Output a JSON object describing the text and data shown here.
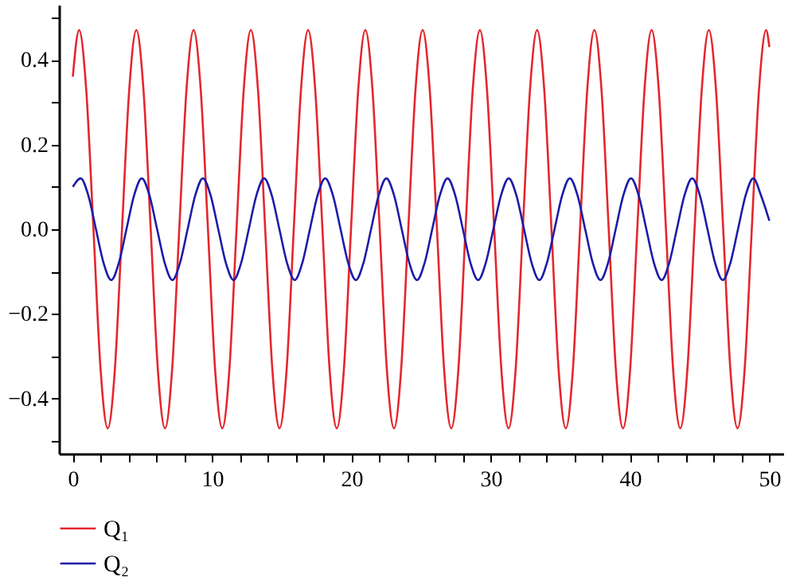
{
  "chart_data": {
    "type": "line",
    "xlim": [
      -1,
      51
    ],
    "ylim": [
      -0.53,
      0.53
    ],
    "xticks": [
      0,
      {
        "value": 2,
        "label": null
      },
      {
        "value": 4,
        "label": null
      },
      {
        "value": 6,
        "label": null
      },
      {
        "value": 8,
        "label": null
      },
      10,
      {
        "value": 12,
        "label": null
      },
      {
        "value": 14,
        "label": null
      },
      {
        "value": 16,
        "label": null
      },
      {
        "value": 18,
        "label": null
      },
      20,
      {
        "value": 22,
        "label": null
      },
      {
        "value": 24,
        "label": null
      },
      {
        "value": 26,
        "label": null
      },
      {
        "value": 28,
        "label": null
      },
      30,
      {
        "value": 32,
        "label": null
      },
      {
        "value": 34,
        "label": null
      },
      {
        "value": 36,
        "label": null
      },
      {
        "value": 38,
        "label": null
      },
      40,
      {
        "value": 42,
        "label": null
      },
      {
        "value": 44,
        "label": null
      },
      {
        "value": 46,
        "label": null
      },
      {
        "value": 48,
        "label": null
      },
      50
    ],
    "yticks": [
      {
        "value": -0.5,
        "label": null
      },
      {
        "value": -0.4,
        "label": "−0.4"
      },
      {
        "value": -0.3,
        "label": null
      },
      {
        "value": -0.2,
        "label": "−0.2"
      },
      {
        "value": -0.1,
        "label": null
      },
      {
        "value": 0,
        "label": "0.0"
      },
      {
        "value": 0.1,
        "label": null
      },
      {
        "value": 0.2,
        "label": "0.2"
      },
      {
        "value": 0.3,
        "label": null
      },
      {
        "value": 0.4,
        "label": "0.4"
      },
      {
        "value": 0.5,
        "label": null
      }
    ],
    "legend": "bottom left",
    "line_style": "solid",
    "marker": "none",
    "series": [
      {
        "name": "Q₁",
        "color": "#e4262d",
        "x": [
          0,
          0.45,
          0.96,
          1.48,
          1.99,
          2.51,
          3.02,
          3.53,
          4.05,
          4.56,
          5.07,
          5.59,
          6.1,
          6.62,
          7.13,
          7.64,
          8.16,
          8.67,
          9.18,
          9.7,
          10.21,
          10.73,
          11.24,
          11.75,
          12.27,
          12.78,
          13.29,
          13.81,
          14.32,
          14.84,
          15.35,
          15.86,
          16.38,
          16.89,
          17.4,
          17.92,
          18.43,
          18.95,
          19.46,
          19.97,
          20.49,
          21.0,
          21.51,
          22.03,
          22.54,
          23.06,
          23.57,
          24.08,
          24.6,
          25.11,
          25.62,
          26.14,
          26.65,
          27.17,
          27.68,
          28.19,
          28.71,
          29.22,
          29.73,
          30.25,
          30.76,
          31.28,
          31.79,
          32.3,
          32.82,
          33.33,
          33.84,
          34.36,
          34.87,
          35.39,
          35.9,
          36.41,
          36.93,
          37.44,
          37.95,
          38.47,
          38.98,
          39.5,
          40.01,
          40.52,
          41.04,
          41.55,
          42.06,
          42.58,
          43.09,
          43.61,
          44.12,
          44.63,
          45.15,
          45.66,
          46.17,
          46.69,
          47.2,
          47.72,
          48.23,
          48.74,
          49.26,
          49.77,
          50
        ],
        "values": [
          0.36,
          0.47,
          0.33,
          0,
          -0.33,
          -0.47,
          -0.33,
          0,
          0.33,
          0.47,
          0.33,
          0,
          -0.33,
          -0.47,
          -0.33,
          0,
          0.33,
          0.47,
          0.33,
          0,
          -0.33,
          -0.47,
          -0.33,
          0,
          0.33,
          0.47,
          0.33,
          0,
          -0.33,
          -0.47,
          -0.33,
          0,
          0.33,
          0.47,
          0.33,
          0,
          -0.33,
          -0.47,
          -0.33,
          0,
          0.33,
          0.47,
          0.33,
          0,
          -0.33,
          -0.47,
          -0.33,
          0,
          0.33,
          0.47,
          0.33,
          0,
          -0.33,
          -0.47,
          -0.33,
          0,
          0.33,
          0.47,
          0.33,
          0,
          -0.33,
          -0.47,
          -0.33,
          0,
          0.33,
          0.47,
          0.33,
          0,
          -0.33,
          -0.47,
          -0.33,
          0,
          0.33,
          0.47,
          0.33,
          0,
          -0.33,
          -0.47,
          -0.33,
          0,
          0.33,
          0.47,
          0.33,
          0,
          -0.33,
          -0.47,
          -0.33,
          0,
          0.33,
          0.47,
          0.33,
          0,
          -0.33,
          -0.47,
          -0.33,
          0,
          0.33,
          0.47,
          0.43
        ]
      },
      {
        "name": "Q₂",
        "color": "#1c1ca8",
        "x": [
          0,
          0.56,
          1.11,
          1.66,
          2.21,
          2.76,
          3.3,
          3.85,
          4.4,
          4.95,
          5.5,
          6.05,
          6.6,
          7.15,
          7.69,
          8.24,
          8.79,
          9.34,
          9.89,
          10.44,
          10.99,
          11.54,
          12.08,
          12.63,
          13.18,
          13.73,
          14.28,
          14.83,
          15.38,
          15.93,
          16.47,
          17.02,
          17.57,
          18.12,
          18.67,
          19.22,
          19.77,
          20.32,
          20.86,
          21.41,
          21.96,
          22.51,
          23.06,
          23.61,
          24.16,
          24.71,
          25.25,
          25.8,
          26.35,
          26.9,
          27.45,
          28.0,
          28.55,
          29.1,
          29.64,
          30.19,
          30.74,
          31.29,
          31.84,
          32.39,
          32.94,
          33.49,
          34.03,
          34.58,
          35.13,
          35.68,
          36.23,
          36.78,
          37.33,
          37.88,
          38.42,
          38.97,
          39.52,
          40.07,
          40.62,
          41.17,
          41.72,
          42.27,
          42.81,
          43.36,
          43.91,
          44.46,
          45.01,
          45.56,
          46.11,
          46.66,
          47.2,
          47.75,
          48.3,
          48.85,
          49.4,
          50
        ],
        "values": [
          0.1,
          0.12,
          0.08,
          0,
          -0.08,
          -0.12,
          -0.08,
          0,
          0.08,
          0.12,
          0.08,
          0,
          -0.08,
          -0.12,
          -0.08,
          0,
          0.08,
          0.12,
          0.08,
          0,
          -0.08,
          -0.12,
          -0.08,
          0,
          0.08,
          0.12,
          0.08,
          0,
          -0.08,
          -0.12,
          -0.08,
          0,
          0.08,
          0.12,
          0.08,
          0,
          -0.08,
          -0.12,
          -0.08,
          0,
          0.08,
          0.12,
          0.08,
          0,
          -0.08,
          -0.12,
          -0.08,
          0,
          0.08,
          0.12,
          0.08,
          0,
          -0.08,
          -0.12,
          -0.08,
          0,
          0.08,
          0.12,
          0.08,
          0,
          -0.08,
          -0.12,
          -0.08,
          0,
          0.08,
          0.12,
          0.08,
          0,
          -0.08,
          -0.12,
          -0.08,
          0,
          0.08,
          0.12,
          0.08,
          0,
          -0.08,
          -0.12,
          -0.08,
          0,
          0.08,
          0.12,
          0.08,
          0,
          -0.08,
          -0.12,
          -0.08,
          0,
          0.08,
          0.12,
          0.08,
          0.02
        ]
      }
    ]
  }
}
